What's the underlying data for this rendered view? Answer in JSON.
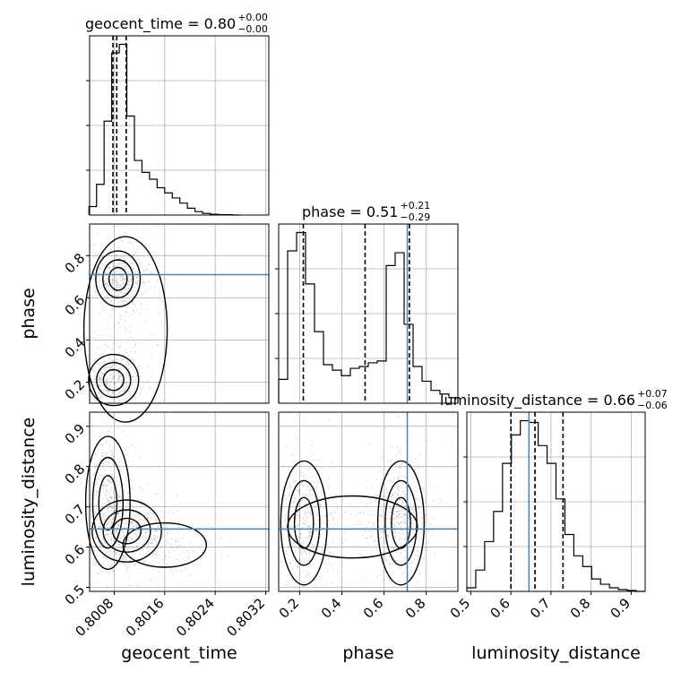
{
  "chart_data": {
    "type": "corner",
    "parameters": [
      "geocent_time",
      "phase",
      "luminosity_distance"
    ],
    "axis_labels": {
      "x": [
        "geocent_time",
        "phase",
        "luminosity_distance"
      ],
      "y": [
        "phase",
        "luminosity_distance"
      ]
    },
    "titles": [
      {
        "param": "geocent_time",
        "text": "geocent_time = 0.80",
        "plus": "+0.00",
        "minus": "−0.00"
      },
      {
        "param": "phase",
        "text": "phase = 0.51",
        "plus": "+0.21",
        "minus": "−0.29"
      },
      {
        "param": "luminosity_distance",
        "text": "luminosity_distance = 0.66",
        "plus": "+0.07",
        "minus": "−0.06"
      }
    ],
    "ranges": {
      "geocent_time": [
        0.80041,
        0.80325
      ],
      "phase": [
        0.1,
        0.95
      ],
      "luminosity_distance": [
        0.49,
        0.935
      ]
    },
    "ticks": {
      "geocent_time": {
        "values": [
          0.8008,
          0.8016,
          0.8024,
          0.8032
        ],
        "labels": [
          "0.8008",
          "0.8016",
          "0.8024",
          "0.8032"
        ]
      },
      "phase_x": {
        "values": [
          0.2,
          0.4,
          0.6,
          0.8
        ],
        "labels": [
          "0.2",
          "0.4",
          "0.6",
          "0.8"
        ]
      },
      "phase_y": {
        "values": [
          0.2,
          0.4,
          0.6,
          0.8
        ],
        "labels": [
          "0.2",
          "0.4",
          "0.6",
          "0.8"
        ]
      },
      "luminosity_distance_x": {
        "values": [
          0.5,
          0.6,
          0.7,
          0.8,
          0.9
        ],
        "labels": [
          "0.5",
          "0.6",
          "0.7",
          "0.8",
          "0.9"
        ]
      },
      "luminosity_distance_y": {
        "values": [
          0.5,
          0.6,
          0.7,
          0.8,
          0.9
        ],
        "labels": [
          "0.5",
          "0.6",
          "0.7",
          "0.8",
          "0.9"
        ]
      }
    },
    "quantiles": {
      "geocent_time": [
        0.80078,
        0.80084,
        0.80099
      ],
      "phase": [
        0.217,
        0.51,
        0.72
      ],
      "luminosity_distance": [
        0.6,
        0.66,
        0.73
      ]
    },
    "injection": {
      "phase": 0.71,
      "luminosity_distance": 0.645
    },
    "histograms": {
      "geocent_time": {
        "edges": [
          0.8004,
          0.80052,
          0.80064,
          0.80076,
          0.80088,
          0.801,
          0.80112,
          0.80124,
          0.80136,
          0.80148,
          0.8016,
          0.80172,
          0.80184,
          0.80196,
          0.80208,
          0.8022,
          0.80232,
          0.80244,
          0.80256,
          0.80268,
          0.8028
        ],
        "counts": [
          5,
          18,
          55,
          95,
          100,
          58,
          32,
          25,
          21,
          16,
          13,
          10,
          7,
          4,
          2,
          1,
          0.5,
          0.3,
          0.2,
          0
        ]
      },
      "phase": {
        "edges": [
          0.1,
          0.1425,
          0.185,
          0.2275,
          0.27,
          0.3125,
          0.355,
          0.3975,
          0.44,
          0.4825,
          0.525,
          0.5675,
          0.61,
          0.6525,
          0.695,
          0.7375,
          0.78,
          0.8225,
          0.865,
          0.9075,
          0.95
        ],
        "counts": [
          13,
          83,
          93,
          65,
          39,
          21,
          18,
          15,
          19,
          20,
          22,
          23,
          75,
          82,
          43,
          20,
          12,
          7,
          5,
          3
        ]
      },
      "luminosity_distance": {
        "edges": [
          0.49,
          0.51225,
          0.5345,
          0.55675,
          0.579,
          0.60125,
          0.6235,
          0.64575,
          0.668,
          0.69025,
          0.7125,
          0.73475,
          0.757,
          0.77925,
          0.8015,
          0.82375,
          0.846,
          0.86825,
          0.8905,
          0.91275,
          0.935
        ],
        "counts": [
          2,
          12,
          28,
          45,
          72,
          88,
          96,
          95,
          82,
          72,
          52,
          32,
          20,
          14,
          7,
          4,
          2,
          1,
          0.5,
          0
        ]
      }
    },
    "density_2d": {
      "phase_vs_geocent_time": {
        "blobs": [
          {
            "x": 0.80079,
            "y": 0.21,
            "sx": 0.00018,
            "sy": 0.055,
            "w": 1.0
          },
          {
            "x": 0.80086,
            "y": 0.69,
            "sx": 0.00016,
            "sy": 0.06,
            "w": 0.85
          },
          {
            "x": 0.80098,
            "y": 0.45,
            "sx": 0.0003,
            "sy": 0.2,
            "w": 0.28
          }
        ]
      },
      "luminosity_distance_vs_geocent_time": {
        "blobs": [
          {
            "x": 0.8007,
            "y": 0.71,
            "sx": 0.00016,
            "sy": 0.075,
            "w": 1.0
          },
          {
            "x": 0.801,
            "y": 0.64,
            "sx": 0.00025,
            "sy": 0.035,
            "w": 0.7
          },
          {
            "x": 0.8016,
            "y": 0.605,
            "sx": 0.0003,
            "sy": 0.025,
            "w": 0.35
          }
        ]
      },
      "luminosity_distance_vs_phase": {
        "blobs": [
          {
            "x": 0.22,
            "y": 0.66,
            "sx": 0.05,
            "sy": 0.07,
            "w": 1.0
          },
          {
            "x": 0.68,
            "y": 0.66,
            "sx": 0.05,
            "sy": 0.07,
            "w": 0.95
          },
          {
            "x": 0.45,
            "y": 0.65,
            "sx": 0.14,
            "sy": 0.035,
            "w": 0.35
          }
        ]
      }
    },
    "colors": {
      "injection": "#4682b4",
      "grid": "#b0b0b0",
      "contour": "#000000"
    },
    "grid": true
  }
}
